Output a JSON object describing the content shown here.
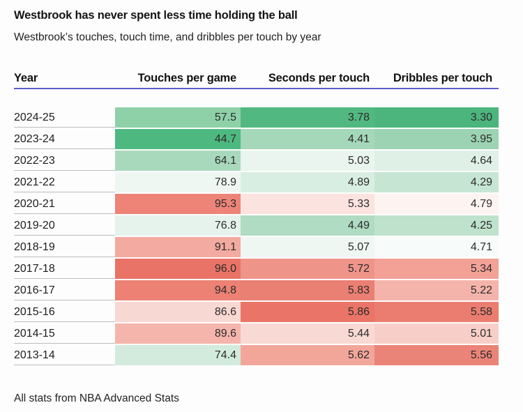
{
  "header": {
    "title": "Westbrook has never spent less time holding the ball",
    "subtitle": "Westbrook’s touches, touch time, and dribbles per touch by year"
  },
  "table": {
    "columns": [
      "Year",
      "Touches per game",
      "Seconds per touch",
      "Dribbles per touch"
    ],
    "rows": [
      {
        "year": "2024-25",
        "touches": {
          "value": "57.5",
          "color": "#8ed1a9"
        },
        "seconds": {
          "value": "3.78",
          "color": "#52b881"
        },
        "dribbles": {
          "value": "3.30",
          "color": "#4cb57d"
        }
      },
      {
        "year": "2023-24",
        "touches": {
          "value": "44.7",
          "color": "#4eb881"
        },
        "seconds": {
          "value": "4.41",
          "color": "#a5d7b9"
        },
        "dribbles": {
          "value": "3.95",
          "color": "#9cd3b2"
        }
      },
      {
        "year": "2022-23",
        "touches": {
          "value": "64.1",
          "color": "#a9d9bd"
        },
        "seconds": {
          "value": "5.03",
          "color": "#ebf5ef"
        },
        "dribbles": {
          "value": "4.64",
          "color": "#dff0e7"
        }
      },
      {
        "year": "2021-22",
        "touches": {
          "value": "78.9",
          "color": "#eff7f2"
        },
        "seconds": {
          "value": "4.89",
          "color": "#d9eee3"
        },
        "dribbles": {
          "value": "4.29",
          "color": "#c6e6d3"
        }
      },
      {
        "year": "2020-21",
        "touches": {
          "value": "95.3",
          "color": "#ed8477"
        },
        "seconds": {
          "value": "5.33",
          "color": "#fbe3df"
        },
        "dribbles": {
          "value": "4.79",
          "color": "#fdf4f2"
        }
      },
      {
        "year": "2019-20",
        "touches": {
          "value": "76.8",
          "color": "#e6f2ec"
        },
        "seconds": {
          "value": "4.49",
          "color": "#afdcc2"
        },
        "dribbles": {
          "value": "4.25",
          "color": "#bfe2cd"
        }
      },
      {
        "year": "2018-19",
        "touches": {
          "value": "91.1",
          "color": "#f3aaa0"
        },
        "seconds": {
          "value": "5.07",
          "color": "#eff7f2"
        },
        "dribbles": {
          "value": "4.71",
          "color": "#f7fbf9"
        }
      },
      {
        "year": "2017-18",
        "touches": {
          "value": "96.0",
          "color": "#e97366"
        },
        "seconds": {
          "value": "5.72",
          "color": "#ef9489"
        },
        "dribbles": {
          "value": "5.34",
          "color": "#f3a197"
        }
      },
      {
        "year": "2016-17",
        "touches": {
          "value": "94.8",
          "color": "#ec8174"
        },
        "seconds": {
          "value": "5.83",
          "color": "#ea7f73"
        },
        "dribbles": {
          "value": "5.22",
          "color": "#f5b4ab"
        }
      },
      {
        "year": "2015-16",
        "touches": {
          "value": "86.6",
          "color": "#f8d8d2"
        },
        "seconds": {
          "value": "5.86",
          "color": "#e97467"
        },
        "dribbles": {
          "value": "5.58",
          "color": "#ea7d70"
        }
      },
      {
        "year": "2014-15",
        "touches": {
          "value": "89.6",
          "color": "#f5b5ac"
        },
        "seconds": {
          "value": "5.44",
          "color": "#f9d9d4"
        },
        "dribbles": {
          "value": "5.01",
          "color": "#f8cfc8"
        }
      },
      {
        "year": "2013-14",
        "touches": {
          "value": "74.4",
          "color": "#d2ebdd"
        },
        "seconds": {
          "value": "5.62",
          "color": "#f2a69a"
        },
        "dribbles": {
          "value": "5.56",
          "color": "#eb8478"
        }
      }
    ]
  },
  "footer": {
    "note": "All stats from NBA Advanced Stats"
  },
  "colors": {
    "header_rule": "#5d5dcb",
    "row_divider": "#bdbdbd",
    "background": "#fdfdfd",
    "green_max": "#4eb881",
    "red_max": "#e97366"
  },
  "chart_data": {
    "type": "heatmap",
    "title": "Westbrook has never spent less time holding the ball",
    "subtitle": "Westbrook's touches, touch time, and dribbles per touch by year",
    "categories": [
      "2024-25",
      "2023-24",
      "2022-23",
      "2021-22",
      "2020-21",
      "2019-20",
      "2018-19",
      "2017-18",
      "2016-17",
      "2015-16",
      "2014-15",
      "2013-14"
    ],
    "series": [
      {
        "name": "Touches per game",
        "values": [
          57.5,
          44.7,
          64.1,
          78.9,
          95.3,
          76.8,
          91.1,
          96.0,
          94.8,
          86.6,
          89.6,
          74.4
        ]
      },
      {
        "name": "Seconds per touch",
        "values": [
          3.78,
          4.41,
          5.03,
          4.89,
          5.33,
          4.49,
          5.07,
          5.72,
          5.83,
          5.86,
          5.44,
          5.62
        ]
      },
      {
        "name": "Dribbles per touch",
        "values": [
          3.3,
          3.95,
          4.64,
          4.29,
          4.79,
          4.25,
          4.71,
          5.34,
          5.22,
          5.58,
          5.01,
          5.56
        ]
      }
    ],
    "annotations": [
      "All stats from NBA Advanced Stats"
    ],
    "layout": {
      "color_scale": "green (low value) to red (high value), scaled per column",
      "legend": "none",
      "grid": "row dividers in year column only"
    }
  }
}
